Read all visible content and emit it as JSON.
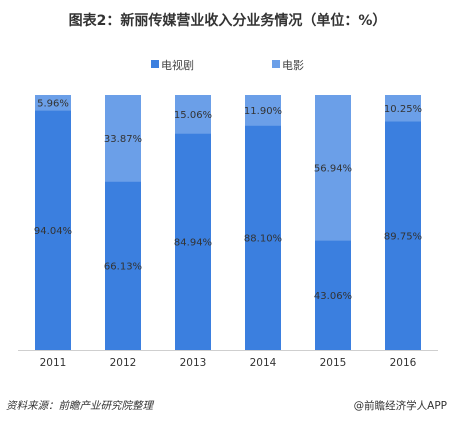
{
  "title": "图表2：新丽传媒营业收入分业务情况（单位：%）",
  "source": "资料来源：前瞻产业研究院整理",
  "brand": "@前瞻经济学人APP",
  "colors": {
    "tv": "#3b7fdf",
    "film": "#6b9fe8"
  },
  "chart_data": {
    "type": "bar",
    "stacked": true,
    "title": "图表2：新丽传媒营业收入分业务情况（单位：%）",
    "categories": [
      "2011",
      "2012",
      "2013",
      "2014",
      "2015",
      "2016"
    ],
    "ylim": [
      0,
      100
    ],
    "legend_position": "top-center",
    "grid": false,
    "series": [
      {
        "name": "电视剧",
        "values": [
          94.04,
          66.13,
          84.94,
          88.1,
          43.06,
          89.75
        ],
        "labels": [
          "94.04%",
          "66.13%",
          "84.94%",
          "88.10%",
          "43.06%",
          "89.75%"
        ]
      },
      {
        "name": "电影",
        "values": [
          5.96,
          33.87,
          15.06,
          11.9,
          56.94,
          10.25
        ],
        "labels": [
          "5.96%",
          "33.87%",
          "15.06%",
          "11.90%",
          "56.94%",
          "10.25%"
        ]
      }
    ]
  }
}
